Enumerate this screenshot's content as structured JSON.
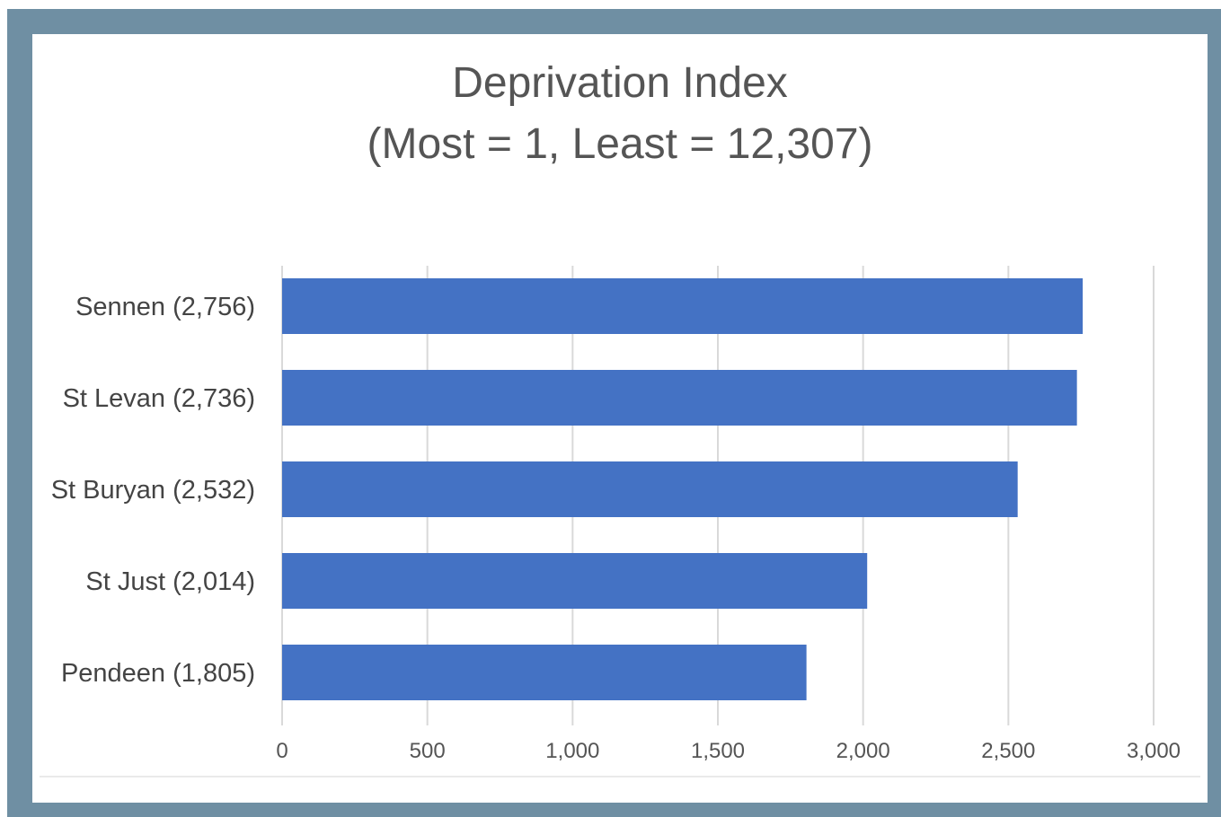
{
  "chart_data": {
    "type": "bar",
    "orientation": "horizontal",
    "title": "Deprivation Index",
    "subtitle": "(Most = 1, Least = 12,307)",
    "categories": [
      "Sennen (2,756)",
      "St Levan (2,736)",
      "St Buryan (2,532)",
      "St Just (2,014)",
      "Pendeen (1,805)"
    ],
    "values": [
      2756,
      2736,
      2532,
      2014,
      1805
    ],
    "xlim": [
      0,
      3000
    ],
    "xticks": [
      0,
      500,
      1000,
      1500,
      2000,
      2500,
      3000
    ],
    "xtick_labels": [
      "0",
      "500",
      "1,000",
      "1,500",
      "2,000",
      "2,500",
      "3,000"
    ],
    "xlabel": "",
    "ylabel": "",
    "grid": "vertical",
    "legend": "none",
    "colors": {
      "bar": "#4472c4",
      "frame": "#6f8fa3",
      "text": "#555555"
    }
  }
}
